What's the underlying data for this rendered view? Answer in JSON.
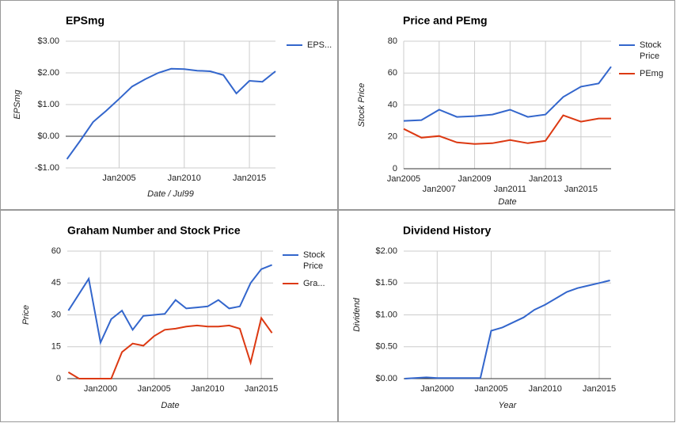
{
  "chart_data": [
    {
      "type": "line",
      "title": "EPSmg",
      "xlabel": "Date / Jul99",
      "ylabel": "EPSmg",
      "xlim": [
        2000.9,
        2017
      ],
      "ylim": [
        -1,
        3
      ],
      "xticks": [
        {
          "value": 2005,
          "label": "Jan2005"
        },
        {
          "value": 2010,
          "label": "Jan2010"
        },
        {
          "value": 2015,
          "label": "Jan2015"
        }
      ],
      "yticks": [
        {
          "value": -1,
          "label": "-$1.00"
        },
        {
          "value": 0,
          "label": "$0.00"
        },
        {
          "value": 1,
          "label": "$1.00"
        },
        {
          "value": 2,
          "label": "$2.00"
        },
        {
          "value": 3,
          "label": "$3.00"
        }
      ],
      "grid": true,
      "legend": "right",
      "series": [
        {
          "name": "EPS...",
          "color": "#3366cc",
          "x": [
            2001,
            2002,
            2003,
            2004,
            2005,
            2006,
            2007,
            2008,
            2009,
            2010,
            2011,
            2012,
            2013,
            2014,
            2015,
            2016,
            2017
          ],
          "values": [
            -0.72,
            -0.15,
            0.45,
            0.8,
            1.18,
            1.57,
            1.8,
            2.0,
            2.13,
            2.12,
            2.07,
            2.05,
            1.93,
            1.35,
            1.75,
            1.72,
            2.05
          ]
        }
      ]
    },
    {
      "type": "line",
      "title": "Price and PEmg",
      "xlabel": "Date",
      "ylabel": "Stock Price",
      "xlim": [
        2005,
        2016.7
      ],
      "ylim": [
        0,
        80
      ],
      "xticks": [
        {
          "value": 2005,
          "label": "Jan2005"
        },
        {
          "value": 2007,
          "label": "Jan2007"
        },
        {
          "value": 2009,
          "label": "Jan2009"
        },
        {
          "value": 2011,
          "label": "Jan2011"
        },
        {
          "value": 2013,
          "label": "Jan2013"
        },
        {
          "value": 2015,
          "label": "Jan2015"
        }
      ],
      "yticks": [
        0,
        20,
        40,
        60,
        80
      ],
      "grid": true,
      "legend": "right",
      "series": [
        {
          "name": "Stock Price",
          "color": "#3366cc",
          "x": [
            2005,
            2006,
            2007,
            2008,
            2009,
            2010,
            2011,
            2012,
            2013,
            2014,
            2015,
            2016,
            2016.7
          ],
          "values": [
            30,
            30.5,
            37,
            32.5,
            33,
            34,
            37,
            32.5,
            34,
            45,
            51.5,
            53.5,
            64
          ]
        },
        {
          "name": "PEmg",
          "color": "#dc3912",
          "x": [
            2005,
            2006,
            2007,
            2008,
            2009,
            2010,
            2011,
            2012,
            2013,
            2014,
            2015,
            2016,
            2016.7
          ],
          "values": [
            25,
            19.5,
            20.5,
            16.5,
            15.5,
            16,
            18,
            16,
            17.5,
            33.5,
            29.5,
            31.5,
            31.5
          ]
        }
      ]
    },
    {
      "type": "line",
      "title": "Graham Number and Stock Price",
      "xlabel": "Date",
      "ylabel": "Price",
      "xlim": [
        1996.9,
        2016.1
      ],
      "ylim": [
        0,
        60
      ],
      "xticks": [
        {
          "value": 2000,
          "label": "Jan2000"
        },
        {
          "value": 2005,
          "label": "Jan2005"
        },
        {
          "value": 2010,
          "label": "Jan2010"
        },
        {
          "value": 2015,
          "label": "Jan2015"
        }
      ],
      "yticks": [
        0,
        15,
        30,
        45,
        60
      ],
      "grid": true,
      "legend": "right",
      "series": [
        {
          "name": "Stock Price",
          "color": "#3366cc",
          "x": [
            1997,
            1998.9,
            2000,
            2001,
            2002,
            2003,
            2004,
            2005,
            2006,
            2007,
            2008,
            2009,
            2010,
            2011,
            2012,
            2013,
            2014,
            2015,
            2016
          ],
          "values": [
            32,
            47,
            17,
            28,
            32,
            23,
            29.5,
            30,
            30.5,
            37,
            33,
            33.5,
            34,
            37,
            33,
            34,
            45,
            51.5,
            53.5
          ]
        },
        {
          "name": "Gra...",
          "color": "#dc3912",
          "x": [
            1997,
            1998,
            1999,
            2000,
            2001,
            2002,
            2003,
            2004,
            2005,
            2006,
            2007,
            2008,
            2009,
            2010,
            2011,
            2012,
            2013,
            2014,
            2015,
            2016
          ],
          "values": [
            3,
            0,
            0,
            0,
            0,
            12.5,
            16.5,
            15.5,
            20,
            23,
            23.5,
            24.5,
            25,
            24.5,
            24.5,
            25,
            23.5,
            7.5,
            28.5,
            21.5
          ]
        }
      ]
    },
    {
      "type": "line",
      "title": "Dividend History",
      "xlabel": "Year",
      "ylabel": "Dividend",
      "xlim": [
        1996.9,
        2016.1
      ],
      "ylim": [
        0,
        2
      ],
      "xticks": [
        {
          "value": 2000,
          "label": "Jan2000"
        },
        {
          "value": 2005,
          "label": "Jan2005"
        },
        {
          "value": 2010,
          "label": "Jan2010"
        },
        {
          "value": 2015,
          "label": "Jan2015"
        }
      ],
      "yticks": [
        {
          "value": 0,
          "label": "$0.00"
        },
        {
          "value": 0.5,
          "label": "$0.50"
        },
        {
          "value": 1,
          "label": "$1.00"
        },
        {
          "value": 1.5,
          "label": "$1.50"
        },
        {
          "value": 2,
          "label": "$2.00"
        }
      ],
      "grid": true,
      "series": [
        {
          "color": "#3366cc",
          "x": [
            1997,
            1999,
            2000,
            2001,
            2002,
            2003,
            2004,
            2005,
            2006,
            2007,
            2008,
            2009,
            2010,
            2011,
            2012,
            2013,
            2014,
            2015,
            2016
          ],
          "values": [
            0,
            0.02,
            0.01,
            0.01,
            0.01,
            0.01,
            0.01,
            0.75,
            0.8,
            0.88,
            0.96,
            1.08,
            1.16,
            1.26,
            1.36,
            1.42,
            1.46,
            1.5,
            1.54
          ]
        }
      ]
    }
  ]
}
